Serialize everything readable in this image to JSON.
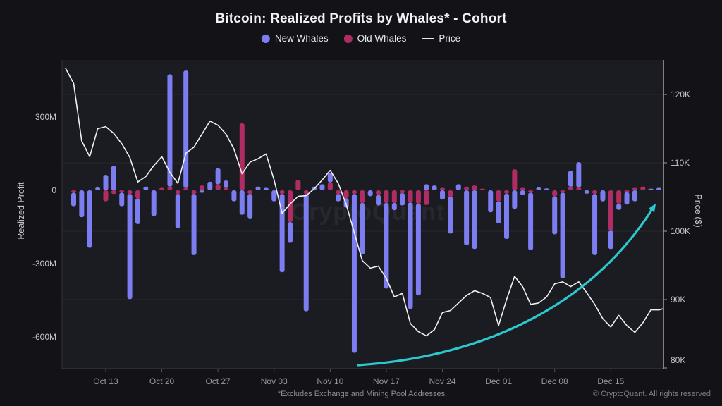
{
  "title": "Bitcoin: Realized Profits by Whales* - Cohort",
  "watermark": "CryptoQuant",
  "footnote": "*Excludes Exchange and Mining Pool Addresses.",
  "copyright": "© CryptoQuant. All rights reserved",
  "legend": {
    "items": [
      {
        "label": "New Whales",
        "color": "#7b7df0",
        "marker": "dot"
      },
      {
        "label": "Old Whales",
        "color": "#b02d63",
        "marker": "dot"
      },
      {
        "label": "Price",
        "color": "#e8e8ec",
        "marker": "line"
      }
    ]
  },
  "axes": {
    "left": {
      "title": "Realized Profit",
      "ticks": [
        {
          "label": "300M",
          "value": 300
        },
        {
          "label": "0",
          "value": 0
        },
        {
          "label": "-300M",
          "value": -300
        },
        {
          "label": "-600M",
          "value": -600
        }
      ]
    },
    "right": {
      "title": "Price ($)",
      "ticks": [
        {
          "label": "120K",
          "value": 120
        },
        {
          "label": "110K",
          "value": 110
        },
        {
          "label": "100K",
          "value": 100
        },
        {
          "label": "90K",
          "value": 90
        },
        {
          "label": "80K",
          "value": 80
        }
      ]
    },
    "x": {
      "ticks": [
        {
          "label": "Oct 13",
          "index": 4
        },
        {
          "label": "Oct 20",
          "index": 11
        },
        {
          "label": "Oct 27",
          "index": 18
        },
        {
          "label": "Nov 03",
          "index": 25
        },
        {
          "label": "Nov 10",
          "index": 32
        },
        {
          "label": "Nov 17",
          "index": 39
        },
        {
          "label": "Nov 24",
          "index": 46
        },
        {
          "label": "Dec 01",
          "index": 53
        },
        {
          "label": "Dec 08",
          "index": 60
        },
        {
          "label": "Dec 15",
          "index": 67
        }
      ]
    }
  },
  "chart_data": {
    "type": "bar",
    "stacked": true,
    "bar_unit": "USD millions (realized profit per day)",
    "bar_count": 74,
    "left_axis_range_M": [
      -700,
      520
    ],
    "right_axis_range_K": [
      80,
      125
    ],
    "gridlines_at_price_K": [
      90,
      100,
      110,
      120
    ],
    "series": [
      {
        "name": "Old Whales",
        "color": "#b02d63",
        "values": [
          -10,
          0,
          0,
          0,
          -45,
          -15,
          -10,
          -15,
          -33,
          0,
          0,
          10,
          15,
          -15,
          10,
          -15,
          20,
          0,
          25,
          10,
          0,
          274,
          -15,
          0,
          0,
          0,
          -15,
          -130,
          43,
          -15,
          0,
          0,
          33,
          -15,
          -33,
          -15,
          -52,
          0,
          -19,
          -52,
          -52,
          -12,
          -50,
          -55,
          -60,
          0,
          10,
          -27,
          0,
          15,
          20,
          7,
          0,
          -45,
          -14,
          86,
          10,
          -10,
          0,
          0,
          -25,
          -10,
          15,
          12,
          0,
          -15,
          0,
          -165,
          -55,
          -8,
          10,
          15,
          0,
          0
        ]
      },
      {
        "name": "New Whales",
        "color": "#7b7df0",
        "values": [
          -55,
          -110,
          -235,
          12,
          63,
          100,
          -55,
          -430,
          -105,
          15,
          -105,
          0,
          460,
          -140,
          480,
          -250,
          -10,
          35,
          65,
          30,
          -45,
          -100,
          -100,
          15,
          10,
          -45,
          -320,
          -85,
          0,
          -480,
          15,
          25,
          38,
          -30,
          -38,
          -650,
          -210,
          -24,
          -43,
          -350,
          -29,
          -50,
          -435,
          -375,
          25,
          20,
          -38,
          -150,
          25,
          -225,
          -240,
          0,
          -90,
          -90,
          -185,
          -76,
          -20,
          -235,
          12,
          8,
          -155,
          -350,
          65,
          103,
          -14,
          -250,
          -45,
          -75,
          -25,
          -50,
          -45,
          0,
          7,
          10
        ]
      }
    ],
    "line_series": {
      "name": "Price",
      "color": "#f1f1f3",
      "unit": "USD thousands",
      "x_index_offset": -1,
      "values": [
        123.8,
        121.6,
        113.2,
        110.9,
        115.0,
        115.3,
        114.3,
        112.8,
        110.8,
        107.2,
        108.0,
        109.6,
        110.9,
        108.6,
        107.0,
        111.4,
        112.3,
        114.2,
        116.1,
        115.5,
        114.2,
        112.0,
        108.4,
        110.1,
        110.6,
        111.3,
        107.5,
        102.6,
        104.0,
        105.1,
        105.2,
        106.2,
        107.5,
        108.9,
        107.0,
        103.9,
        99.8,
        95.7,
        94.6,
        94.9,
        93.1,
        90.4,
        90.9,
        86.5,
        85.3,
        84.7,
        85.6,
        88.1,
        88.4,
        89.5,
        90.6,
        91.3,
        90.9,
        90.3,
        86.2,
        90.0,
        93.4,
        91.9,
        89.3,
        89.5,
        90.4,
        92.3,
        92.6,
        91.9,
        92.6,
        91.0,
        89.3,
        87.2,
        86.0,
        87.7,
        86.2,
        85.2,
        86.6,
        88.5,
        88.5,
        88.8
      ]
    },
    "annotation_arrow": {
      "color": "#2bc8ce",
      "path": {
        "x0": 508,
        "y0": 518,
        "c1x": 660,
        "c1y": 508,
        "c2x": 830,
        "c2y": 450,
        "x1": 928,
        "y1": 292
      }
    }
  }
}
